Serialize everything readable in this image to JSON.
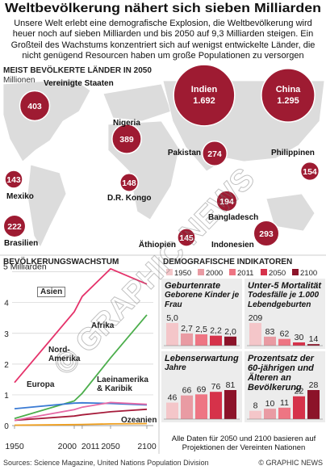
{
  "title": "Weltbevölkerung nähert sich sieben Milliarden",
  "intro": "Unsere Welt erlebt eine demografische Explosion, die Weltbevölkerung wird heuer noch auf sieben Milliarden und bis 2050 auf 9,3 Milliarden steigen. Ein Großteil des Wachstums konzentriert sich auf wenigst entwickelte Länder, die nicht genügend Resourcen haben um große Populationen zu versorgen",
  "watermark": "© GRAPHIC NEWS",
  "sources": "Sources: Science Magazine, United Nations Population Division",
  "credit": "© GRAPHIC NEWS",
  "chart_data": [
    {
      "type": "bubble-map",
      "title": "MEIST BEVÖLKERTE LÄNDER IN 2050",
      "unit": "Millionen",
      "color": "#9e1b32",
      "categories": [
        "Vereinigte Staaten",
        "Indien",
        "China",
        "Nigeria",
        "Pakistan",
        "Philippinen",
        "Mexiko",
        "D.R. Kongo",
        "Bangladesch",
        "Brasilien",
        "Äthiopien",
        "Indonesien"
      ],
      "values": [
        403,
        1692,
        1295,
        389,
        274,
        154,
        143,
        148,
        194,
        222,
        145,
        293
      ],
      "value_labels": [
        "403",
        "1.692",
        "1.295",
        "389",
        "274",
        "154",
        "143",
        "148",
        "194",
        "222",
        "145",
        "293"
      ]
    },
    {
      "type": "line",
      "title": "BEVÖLKERUNGSWACHSTUM",
      "x": [
        1950,
        2000,
        2011,
        2050,
        2100
      ],
      "xlim": [
        1950,
        2100
      ],
      "xticks": [
        1950,
        2000,
        2011,
        2050,
        2100
      ],
      "ylim": [
        0,
        5.2
      ],
      "yticks": [
        0,
        1,
        2,
        3,
        4,
        {
          "value": 5,
          "label": "5 Milliarden"
        }
      ],
      "grid": true,
      "series": [
        {
          "name": "Asien",
          "color": "#e5336b",
          "values": [
            1.4,
            3.7,
            4.2,
            5.1,
            4.6
          ]
        },
        {
          "name": "Afrika",
          "color": "#4cae4c",
          "values": [
            0.23,
            0.8,
            1.05,
            2.2,
            3.6
          ]
        },
        {
          "name": "Nord-Amerika",
          "color": "#a61b3a",
          "values": [
            0.17,
            0.31,
            0.35,
            0.45,
            0.53
          ]
        },
        {
          "name": "Europa",
          "color": "#3b7bd4",
          "values": [
            0.55,
            0.73,
            0.74,
            0.72,
            0.67
          ]
        },
        {
          "name": "Laeinamerika & Karibik",
          "color": "#e66aa6",
          "values": [
            0.17,
            0.52,
            0.6,
            0.75,
            0.69
          ]
        },
        {
          "name": "Ozeanien",
          "color": "#f0a020",
          "values": [
            0.013,
            0.031,
            0.037,
            0.055,
            0.066
          ]
        }
      ]
    },
    {
      "type": "bar-panels",
      "title": "DEMOGRAFISCHE INDIKATOREN",
      "categories": [
        "1950",
        "2000",
        "2011",
        "2050",
        "2100"
      ],
      "colors": [
        "#f4c6c9",
        "#e99ba3",
        "#ee7583",
        "#d6324a",
        "#8c1329"
      ],
      "panels": [
        {
          "title": "Geburtenrate",
          "subtitle": "Geborene Kinder je Frau",
          "values": [
            5.0,
            2.7,
            2.5,
            2.2,
            2.0
          ],
          "value_labels": [
            "5,0",
            "2,7",
            "2,5",
            "2,2",
            "2,0"
          ]
        },
        {
          "title": "Unter-5 Mortalität",
          "subtitle": "Todesfälle je 1.000 Lebendgeburten",
          "values": [
            209,
            83,
            62,
            30,
            14
          ]
        },
        {
          "title": "Lebenserwartung",
          "subtitle": "Jahre",
          "values": [
            46,
            66,
            69,
            76,
            81
          ]
        },
        {
          "title": "Prozentsatz der 60-jährigen und Älteren an Bevölkerung",
          "values": [
            8,
            10,
            11,
            22,
            28
          ]
        }
      ],
      "note": "Alle Daten für 2050 und 2100 basieren auf Projektionen der Vereinten Nationen"
    }
  ]
}
